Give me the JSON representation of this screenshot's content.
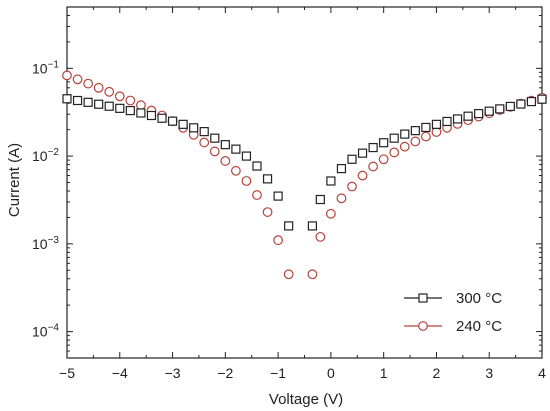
{
  "chart_data": {
    "type": "scatter",
    "xlabel": "Voltage (V)",
    "ylabel": "Current (A)",
    "xlim": [
      -5,
      4
    ],
    "ylim": [
      5e-05,
      0.5
    ],
    "yscale": "log",
    "grid": false,
    "legend_position": "bottom-right",
    "x_ticks": [
      {
        "value": -5,
        "label": "−5"
      },
      {
        "value": -4,
        "label": "−4"
      },
      {
        "value": -3,
        "label": "−3"
      },
      {
        "value": -2,
        "label": "−2"
      },
      {
        "value": -1,
        "label": "−1"
      },
      {
        "value": 0,
        "label": "0"
      },
      {
        "value": 1,
        "label": "1"
      },
      {
        "value": 2,
        "label": "2"
      },
      {
        "value": 3,
        "label": "3"
      },
      {
        "value": 4,
        "label": "4"
      }
    ],
    "y_ticks": [
      {
        "value": 0.1,
        "base": "10",
        "exp": "−1"
      },
      {
        "value": 0.01,
        "base": "10",
        "exp": "−2"
      },
      {
        "value": 0.001,
        "base": "10",
        "exp": "−3"
      },
      {
        "value": 0.0001,
        "base": "10",
        "exp": "−4"
      }
    ],
    "series": [
      {
        "name": "300 °C",
        "color": "#222222",
        "marker": "square",
        "x": [
          -5,
          -4.8,
          -4.6,
          -4.4,
          -4.2,
          -4,
          -3.8,
          -3.6,
          -3.4,
          -3.2,
          -3,
          -2.8,
          -2.6,
          -2.4,
          -2.2,
          -2,
          -1.8,
          -1.6,
          -1.4,
          -1.2,
          -1,
          -0.8,
          -0.35,
          -0.2,
          0,
          0.2,
          0.4,
          0.6,
          0.8,
          1,
          1.2,
          1.4,
          1.6,
          1.8,
          2,
          2.2,
          2.4,
          2.6,
          2.8,
          3,
          3.2,
          3.4,
          3.6,
          3.8,
          4
        ],
        "y": [
          0.045,
          0.043,
          0.041,
          0.039,
          0.037,
          0.035,
          0.033,
          0.031,
          0.029,
          0.027,
          0.025,
          0.023,
          0.021,
          0.019,
          0.016,
          0.0135,
          0.012,
          0.01,
          0.0077,
          0.0055,
          0.0035,
          0.0016,
          0.0016,
          0.0032,
          0.0052,
          0.0072,
          0.0092,
          0.0108,
          0.0125,
          0.0142,
          0.016,
          0.0178,
          0.0195,
          0.0212,
          0.023,
          0.0248,
          0.0265,
          0.0285,
          0.0305,
          0.0325,
          0.0345,
          0.0368,
          0.0392,
          0.0418,
          0.0445
        ]
      },
      {
        "name": "240 °C",
        "color": "#b5433a",
        "marker": "circle",
        "x": [
          -5,
          -4.8,
          -4.6,
          -4.4,
          -4.2,
          -4,
          -3.8,
          -3.6,
          -3.4,
          -3.2,
          -3,
          -2.8,
          -2.6,
          -2.4,
          -2.2,
          -2,
          -1.8,
          -1.6,
          -1.4,
          -1.2,
          -1,
          -0.8,
          -0.35,
          -0.2,
          0,
          0.2,
          0.4,
          0.6,
          0.8,
          1,
          1.2,
          1.4,
          1.6,
          1.8,
          2,
          2.2,
          2.4,
          2.6,
          2.8,
          3,
          3.2,
          3.4,
          3.6,
          3.8,
          4
        ],
        "y": [
          0.083,
          0.075,
          0.067,
          0.06,
          0.054,
          0.048,
          0.043,
          0.038,
          0.033,
          0.029,
          0.025,
          0.021,
          0.0175,
          0.0143,
          0.0113,
          0.0088,
          0.0068,
          0.0052,
          0.0036,
          0.0023,
          0.0011,
          0.00045,
          0.00045,
          0.0012,
          0.0022,
          0.0033,
          0.0045,
          0.006,
          0.0076,
          0.0092,
          0.011,
          0.0128,
          0.0147,
          0.0167,
          0.0188,
          0.021,
          0.0233,
          0.0257,
          0.0282,
          0.0308,
          0.0336,
          0.0365,
          0.0396,
          0.0428,
          0.0462
        ]
      }
    ]
  }
}
